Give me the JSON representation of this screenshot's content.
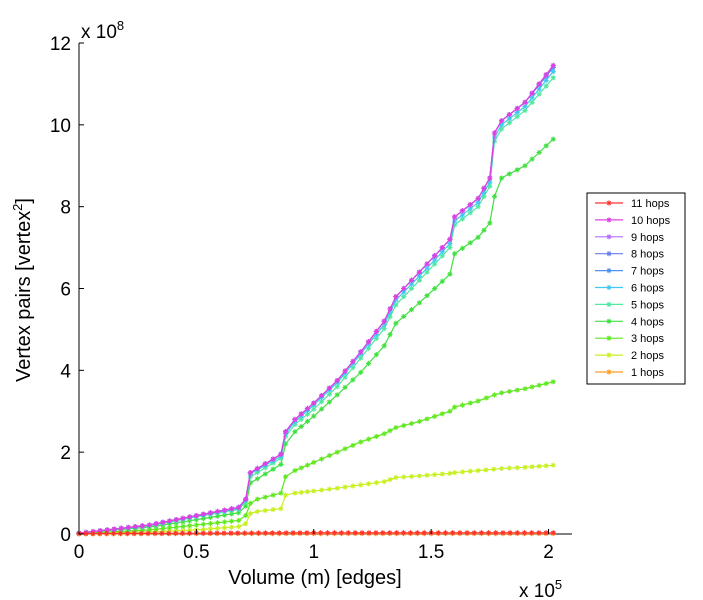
{
  "chart_data": {
    "type": "line",
    "xlabel": "Volume (m) [edges]",
    "ylabel_main": "Vertex pairs [vertex",
    "ylabel_sup": "2",
    "ylabel_close": "]",
    "x_multiplier_base": "x 10",
    "x_multiplier_exp": "5",
    "y_multiplier_base": "x 10",
    "y_multiplier_exp": "8",
    "xlim": [
      0,
      2.1
    ],
    "ylim": [
      0,
      12
    ],
    "x_ticks": [
      0,
      0.5,
      1,
      1.5,
      2
    ],
    "x_tick_labels": [
      "0",
      "0.5",
      "1",
      "1.5",
      "2"
    ],
    "y_ticks": [
      0,
      2,
      4,
      6,
      8,
      10,
      12
    ],
    "y_tick_labels": [
      "0",
      "2",
      "4",
      "6",
      "8",
      "10",
      "12"
    ],
    "legend_position": "right",
    "series": [
      {
        "name": "11 hops",
        "color": "#ff3030",
        "points": [
          [
            0,
            0.01
          ],
          [
            0.5,
            0.02
          ],
          [
            1,
            0.03
          ],
          [
            1.5,
            0.03
          ],
          [
            2.02,
            0.03
          ]
        ]
      },
      {
        "name": "10 hops",
        "color": "#e040e0",
        "points": [
          [
            0,
            0.02
          ],
          [
            0.3,
            0.22
          ],
          [
            0.5,
            0.45
          ],
          [
            0.68,
            0.65
          ],
          [
            0.71,
            0.85
          ],
          [
            0.73,
            1.5
          ],
          [
            0.76,
            1.6
          ],
          [
            0.86,
            1.95
          ],
          [
            0.88,
            2.5
          ],
          [
            0.92,
            2.8
          ],
          [
            1.0,
            3.2
          ],
          [
            1.1,
            3.75
          ],
          [
            1.2,
            4.45
          ],
          [
            1.3,
            5.2
          ],
          [
            1.35,
            5.8
          ],
          [
            1.45,
            6.4
          ],
          [
            1.58,
            7.2
          ],
          [
            1.6,
            7.75
          ],
          [
            1.7,
            8.2
          ],
          [
            1.75,
            8.7
          ],
          [
            1.77,
            9.8
          ],
          [
            1.8,
            10.1
          ],
          [
            1.9,
            10.55
          ],
          [
            2.02,
            11.45
          ]
        ]
      },
      {
        "name": "9 hops",
        "color": "#b070ff",
        "points": [
          [
            0,
            0.02
          ],
          [
            0.3,
            0.22
          ],
          [
            0.5,
            0.45
          ],
          [
            0.68,
            0.65
          ],
          [
            0.71,
            0.85
          ],
          [
            0.73,
            1.5
          ],
          [
            0.76,
            1.6
          ],
          [
            0.86,
            1.95
          ],
          [
            0.88,
            2.5
          ],
          [
            0.92,
            2.8
          ],
          [
            1.0,
            3.2
          ],
          [
            1.1,
            3.75
          ],
          [
            1.2,
            4.45
          ],
          [
            1.3,
            5.2
          ],
          [
            1.35,
            5.8
          ],
          [
            1.45,
            6.4
          ],
          [
            1.58,
            7.2
          ],
          [
            1.6,
            7.75
          ],
          [
            1.7,
            8.2
          ],
          [
            1.75,
            8.7
          ],
          [
            1.77,
            9.8
          ],
          [
            1.8,
            10.1
          ],
          [
            1.9,
            10.55
          ],
          [
            2.02,
            11.45
          ]
        ]
      },
      {
        "name": "8 hops",
        "color": "#6a7cf0",
        "points": [
          [
            0,
            0.02
          ],
          [
            0.3,
            0.22
          ],
          [
            0.5,
            0.45
          ],
          [
            0.68,
            0.65
          ],
          [
            0.71,
            0.85
          ],
          [
            0.73,
            1.5
          ],
          [
            0.76,
            1.6
          ],
          [
            0.86,
            1.95
          ],
          [
            0.88,
            2.5
          ],
          [
            0.92,
            2.8
          ],
          [
            1.0,
            3.2
          ],
          [
            1.1,
            3.75
          ],
          [
            1.2,
            4.45
          ],
          [
            1.3,
            5.2
          ],
          [
            1.35,
            5.8
          ],
          [
            1.45,
            6.4
          ],
          [
            1.58,
            7.2
          ],
          [
            1.6,
            7.75
          ],
          [
            1.7,
            8.2
          ],
          [
            1.75,
            8.7
          ],
          [
            1.77,
            9.8
          ],
          [
            1.8,
            10.1
          ],
          [
            1.9,
            10.55
          ],
          [
            2.02,
            11.45
          ]
        ]
      },
      {
        "name": "7 hops",
        "color": "#5090f0",
        "points": [
          [
            0,
            0.02
          ],
          [
            0.3,
            0.22
          ],
          [
            0.5,
            0.45
          ],
          [
            0.68,
            0.65
          ],
          [
            0.71,
            0.85
          ],
          [
            0.73,
            1.5
          ],
          [
            0.76,
            1.6
          ],
          [
            0.86,
            1.95
          ],
          [
            0.88,
            2.5
          ],
          [
            0.92,
            2.8
          ],
          [
            1.0,
            3.2
          ],
          [
            1.1,
            3.75
          ],
          [
            1.2,
            4.45
          ],
          [
            1.3,
            5.2
          ],
          [
            1.35,
            5.8
          ],
          [
            1.45,
            6.4
          ],
          [
            1.58,
            7.2
          ],
          [
            1.6,
            7.75
          ],
          [
            1.7,
            8.2
          ],
          [
            1.75,
            8.7
          ],
          [
            1.77,
            9.8
          ],
          [
            1.8,
            10.1
          ],
          [
            1.9,
            10.55
          ],
          [
            2.02,
            11.4
          ]
        ]
      },
      {
        "name": "6 hops",
        "color": "#40c8f0",
        "points": [
          [
            0,
            0.02
          ],
          [
            0.3,
            0.21
          ],
          [
            0.5,
            0.44
          ],
          [
            0.68,
            0.63
          ],
          [
            0.71,
            0.82
          ],
          [
            0.73,
            1.47
          ],
          [
            0.76,
            1.57
          ],
          [
            0.86,
            1.9
          ],
          [
            0.88,
            2.45
          ],
          [
            0.92,
            2.75
          ],
          [
            1.0,
            3.15
          ],
          [
            1.1,
            3.7
          ],
          [
            1.2,
            4.4
          ],
          [
            1.3,
            5.12
          ],
          [
            1.35,
            5.72
          ],
          [
            1.45,
            6.3
          ],
          [
            1.58,
            7.1
          ],
          [
            1.6,
            7.65
          ],
          [
            1.7,
            8.1
          ],
          [
            1.75,
            8.6
          ],
          [
            1.77,
            9.7
          ],
          [
            1.8,
            10.0
          ],
          [
            1.9,
            10.45
          ],
          [
            2.02,
            11.3
          ]
        ]
      },
      {
        "name": "5 hops",
        "color": "#50e8a0",
        "points": [
          [
            0,
            0.02
          ],
          [
            0.3,
            0.2
          ],
          [
            0.5,
            0.42
          ],
          [
            0.68,
            0.6
          ],
          [
            0.71,
            0.78
          ],
          [
            0.73,
            1.4
          ],
          [
            0.76,
            1.5
          ],
          [
            0.86,
            1.85
          ],
          [
            0.88,
            2.38
          ],
          [
            0.92,
            2.68
          ],
          [
            1.0,
            3.05
          ],
          [
            1.1,
            3.6
          ],
          [
            1.2,
            4.3
          ],
          [
            1.3,
            5.02
          ],
          [
            1.35,
            5.6
          ],
          [
            1.45,
            6.2
          ],
          [
            1.58,
            7.0
          ],
          [
            1.6,
            7.55
          ],
          [
            1.7,
            8.0
          ],
          [
            1.75,
            8.5
          ],
          [
            1.77,
            9.6
          ],
          [
            1.8,
            9.9
          ],
          [
            1.9,
            10.35
          ],
          [
            2.02,
            11.15
          ]
        ]
      },
      {
        "name": "4 hops",
        "color": "#40e040",
        "points": [
          [
            0,
            0.02
          ],
          [
            0.3,
            0.17
          ],
          [
            0.5,
            0.35
          ],
          [
            0.68,
            0.52
          ],
          [
            0.71,
            0.68
          ],
          [
            0.73,
            1.25
          ],
          [
            0.76,
            1.35
          ],
          [
            0.86,
            1.7
          ],
          [
            0.88,
            2.2
          ],
          [
            0.92,
            2.5
          ],
          [
            1.0,
            2.88
          ],
          [
            1.1,
            3.4
          ],
          [
            1.2,
            3.95
          ],
          [
            1.3,
            4.6
          ],
          [
            1.35,
            5.15
          ],
          [
            1.45,
            5.65
          ],
          [
            1.58,
            6.35
          ],
          [
            1.6,
            6.85
          ],
          [
            1.7,
            7.25
          ],
          [
            1.75,
            7.6
          ],
          [
            1.77,
            8.25
          ],
          [
            1.8,
            8.7
          ],
          [
            1.9,
            9.0
          ],
          [
            2.02,
            9.65
          ]
        ]
      },
      {
        "name": "3 hops",
        "color": "#60e820",
        "points": [
          [
            0,
            0.01
          ],
          [
            0.3,
            0.1
          ],
          [
            0.5,
            0.22
          ],
          [
            0.68,
            0.33
          ],
          [
            0.71,
            0.45
          ],
          [
            0.73,
            0.75
          ],
          [
            0.76,
            0.85
          ],
          [
            0.86,
            1.0
          ],
          [
            0.88,
            1.4
          ],
          [
            0.92,
            1.55
          ],
          [
            1.0,
            1.75
          ],
          [
            1.1,
            2.0
          ],
          [
            1.2,
            2.25
          ],
          [
            1.3,
            2.45
          ],
          [
            1.35,
            2.6
          ],
          [
            1.45,
            2.75
          ],
          [
            1.58,
            3.0
          ],
          [
            1.6,
            3.1
          ],
          [
            1.7,
            3.25
          ],
          [
            1.77,
            3.4
          ],
          [
            1.8,
            3.45
          ],
          [
            1.9,
            3.55
          ],
          [
            2.02,
            3.72
          ]
        ]
      },
      {
        "name": "2 hops",
        "color": "#c8f020",
        "points": [
          [
            0,
            0.01
          ],
          [
            0.3,
            0.05
          ],
          [
            0.5,
            0.1
          ],
          [
            0.68,
            0.18
          ],
          [
            0.71,
            0.25
          ],
          [
            0.73,
            0.5
          ],
          [
            0.76,
            0.55
          ],
          [
            0.86,
            0.62
          ],
          [
            0.88,
            0.95
          ],
          [
            0.92,
            1.0
          ],
          [
            1.0,
            1.05
          ],
          [
            1.1,
            1.12
          ],
          [
            1.2,
            1.2
          ],
          [
            1.3,
            1.28
          ],
          [
            1.35,
            1.38
          ],
          [
            1.45,
            1.42
          ],
          [
            1.58,
            1.48
          ],
          [
            1.6,
            1.5
          ],
          [
            1.7,
            1.55
          ],
          [
            1.8,
            1.6
          ],
          [
            1.9,
            1.63
          ],
          [
            2.02,
            1.68
          ]
        ]
      },
      {
        "name": "1 hops",
        "color": "#ff9a20",
        "points": [
          [
            0,
            0.0
          ],
          [
            0.5,
            0.01
          ],
          [
            1,
            0.01
          ],
          [
            1.5,
            0.01
          ],
          [
            2.02,
            0.01
          ]
        ]
      }
    ]
  }
}
